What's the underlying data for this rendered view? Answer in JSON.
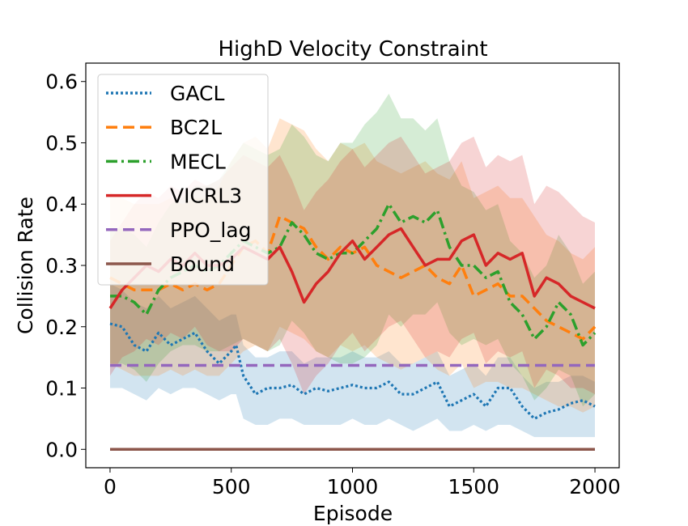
{
  "chart_data": {
    "type": "line",
    "title": "HighD Velocity Constraint",
    "xlabel": "Episode",
    "ylabel": "Collision Rate",
    "xlim": [
      -100,
      2100
    ],
    "ylim": [
      -0.03,
      0.63
    ],
    "xticks": [
      0,
      500,
      1000,
      1500,
      2000
    ],
    "yticks": [
      0.0,
      0.1,
      0.2,
      0.3,
      0.4,
      0.5,
      0.6
    ],
    "legend_position": "upper-left",
    "series": [
      {
        "name": "GACL",
        "color": "#1f77b4",
        "style": "dotted",
        "x": [
          0,
          50,
          100,
          150,
          200,
          250,
          300,
          350,
          400,
          450,
          500,
          520,
          550,
          600,
          650,
          700,
          750,
          800,
          850,
          900,
          950,
          1000,
          1050,
          1100,
          1150,
          1200,
          1250,
          1300,
          1350,
          1400,
          1450,
          1500,
          1550,
          1600,
          1650,
          1700,
          1750,
          1800,
          1850,
          1900,
          1950,
          2000
        ],
        "values": [
          0.205,
          0.2,
          0.17,
          0.16,
          0.19,
          0.17,
          0.18,
          0.19,
          0.16,
          0.14,
          0.16,
          0.17,
          0.12,
          0.09,
          0.1,
          0.1,
          0.105,
          0.09,
          0.1,
          0.095,
          0.1,
          0.105,
          0.1,
          0.1,
          0.11,
          0.09,
          0.09,
          0.1,
          0.11,
          0.07,
          0.08,
          0.09,
          0.07,
          0.1,
          0.1,
          0.07,
          0.05,
          0.06,
          0.065,
          0.075,
          0.08,
          0.07
        ],
        "band_upper": [
          0.27,
          0.26,
          0.24,
          0.23,
          0.25,
          0.23,
          0.24,
          0.25,
          0.23,
          0.21,
          0.22,
          0.22,
          0.17,
          0.15,
          0.15,
          0.16,
          0.16,
          0.14,
          0.15,
          0.15,
          0.15,
          0.16,
          0.15,
          0.15,
          0.16,
          0.14,
          0.14,
          0.15,
          0.16,
          0.12,
          0.13,
          0.14,
          0.12,
          0.15,
          0.15,
          0.12,
          0.1,
          0.11,
          0.11,
          0.12,
          0.12,
          0.11
        ],
        "band_lower": [
          0.1,
          0.1,
          0.09,
          0.08,
          0.1,
          0.09,
          0.1,
          0.1,
          0.09,
          0.08,
          0.09,
          0.09,
          0.05,
          0.04,
          0.04,
          0.05,
          0.05,
          0.04,
          0.04,
          0.04,
          0.04,
          0.05,
          0.04,
          0.04,
          0.05,
          0.04,
          0.03,
          0.04,
          0.05,
          0.03,
          0.03,
          0.04,
          0.03,
          0.04,
          0.04,
          0.03,
          0.02,
          0.02,
          0.02,
          0.02,
          0.02,
          0.02
        ]
      },
      {
        "name": "BC2L",
        "color": "#ff7f0e",
        "style": "dashed",
        "x": [
          0,
          50,
          100,
          150,
          200,
          250,
          300,
          350,
          400,
          450,
          500,
          550,
          600,
          650,
          700,
          750,
          800,
          850,
          900,
          950,
          1000,
          1050,
          1100,
          1150,
          1200,
          1250,
          1300,
          1350,
          1400,
          1450,
          1500,
          1550,
          1600,
          1650,
          1700,
          1750,
          1800,
          1850,
          1900,
          1950,
          2000
        ],
        "values": [
          0.28,
          0.27,
          0.26,
          0.26,
          0.26,
          0.27,
          0.26,
          0.27,
          0.26,
          0.27,
          0.3,
          0.33,
          0.34,
          0.32,
          0.38,
          0.37,
          0.36,
          0.33,
          0.31,
          0.33,
          0.32,
          0.33,
          0.3,
          0.29,
          0.28,
          0.29,
          0.3,
          0.28,
          0.27,
          0.3,
          0.25,
          0.26,
          0.27,
          0.25,
          0.25,
          0.23,
          0.21,
          0.2,
          0.19,
          0.18,
          0.2
        ],
        "band_upper": [
          0.42,
          0.41,
          0.4,
          0.4,
          0.4,
          0.41,
          0.4,
          0.41,
          0.41,
          0.43,
          0.47,
          0.5,
          0.51,
          0.49,
          0.54,
          0.53,
          0.52,
          0.49,
          0.47,
          0.5,
          0.49,
          0.5,
          0.47,
          0.46,
          0.45,
          0.46,
          0.47,
          0.45,
          0.44,
          0.47,
          0.41,
          0.42,
          0.43,
          0.41,
          0.41,
          0.38,
          0.35,
          0.34,
          0.32,
          0.31,
          0.33
        ],
        "band_lower": [
          0.14,
          0.13,
          0.12,
          0.12,
          0.12,
          0.13,
          0.12,
          0.13,
          0.12,
          0.12,
          0.14,
          0.16,
          0.17,
          0.16,
          0.2,
          0.19,
          0.18,
          0.16,
          0.15,
          0.17,
          0.16,
          0.17,
          0.15,
          0.14,
          0.13,
          0.14,
          0.15,
          0.13,
          0.12,
          0.14,
          0.1,
          0.11,
          0.11,
          0.1,
          0.1,
          0.09,
          0.08,
          0.07,
          0.07,
          0.06,
          0.07
        ]
      },
      {
        "name": "MECL",
        "color": "#2ca02c",
        "style": "dashdot",
        "x": [
          0,
          50,
          100,
          150,
          200,
          250,
          300,
          350,
          400,
          450,
          500,
          550,
          600,
          650,
          700,
          750,
          800,
          850,
          900,
          950,
          1000,
          1050,
          1100,
          1150,
          1200,
          1250,
          1300,
          1350,
          1400,
          1450,
          1500,
          1550,
          1600,
          1650,
          1700,
          1750,
          1800,
          1850,
          1900,
          1950,
          2000
        ],
        "values": [
          0.25,
          0.25,
          0.24,
          0.22,
          0.26,
          0.28,
          0.29,
          0.3,
          0.29,
          0.3,
          0.32,
          0.34,
          0.33,
          0.32,
          0.33,
          0.37,
          0.35,
          0.32,
          0.31,
          0.32,
          0.32,
          0.34,
          0.36,
          0.4,
          0.37,
          0.38,
          0.37,
          0.39,
          0.33,
          0.3,
          0.3,
          0.28,
          0.29,
          0.24,
          0.22,
          0.18,
          0.2,
          0.24,
          0.22,
          0.17,
          0.19
        ],
        "band_upper": [
          0.36,
          0.36,
          0.35,
          0.33,
          0.37,
          0.4,
          0.41,
          0.43,
          0.43,
          0.44,
          0.47,
          0.5,
          0.49,
          0.48,
          0.49,
          0.53,
          0.51,
          0.48,
          0.47,
          0.5,
          0.5,
          0.53,
          0.55,
          0.58,
          0.54,
          0.54,
          0.52,
          0.54,
          0.47,
          0.43,
          0.42,
          0.39,
          0.4,
          0.34,
          0.32,
          0.28,
          0.3,
          0.35,
          0.32,
          0.27,
          0.29
        ],
        "band_lower": [
          0.14,
          0.14,
          0.13,
          0.11,
          0.14,
          0.16,
          0.17,
          0.17,
          0.16,
          0.16,
          0.17,
          0.18,
          0.17,
          0.16,
          0.17,
          0.21,
          0.19,
          0.16,
          0.15,
          0.14,
          0.14,
          0.15,
          0.17,
          0.22,
          0.2,
          0.22,
          0.22,
          0.24,
          0.19,
          0.17,
          0.18,
          0.17,
          0.18,
          0.14,
          0.12,
          0.08,
          0.1,
          0.13,
          0.12,
          0.07,
          0.09
        ]
      },
      {
        "name": "VICRL3",
        "color": "#d62728",
        "style": "solid",
        "x": [
          0,
          50,
          100,
          150,
          200,
          250,
          300,
          350,
          400,
          450,
          500,
          550,
          600,
          650,
          700,
          750,
          800,
          850,
          900,
          950,
          1000,
          1050,
          1100,
          1150,
          1200,
          1250,
          1300,
          1350,
          1400,
          1450,
          1500,
          1550,
          1600,
          1650,
          1700,
          1750,
          1800,
          1850,
          1900,
          1950,
          2000
        ],
        "values": [
          0.23,
          0.26,
          0.28,
          0.3,
          0.29,
          0.31,
          0.3,
          0.32,
          0.3,
          0.3,
          0.31,
          0.33,
          0.32,
          0.31,
          0.33,
          0.29,
          0.24,
          0.27,
          0.29,
          0.32,
          0.34,
          0.31,
          0.33,
          0.35,
          0.36,
          0.33,
          0.3,
          0.31,
          0.31,
          0.34,
          0.35,
          0.3,
          0.32,
          0.31,
          0.32,
          0.25,
          0.28,
          0.27,
          0.25,
          0.24,
          0.23
        ],
        "band_upper": [
          0.34,
          0.37,
          0.4,
          0.42,
          0.41,
          0.43,
          0.42,
          0.44,
          0.43,
          0.44,
          0.46,
          0.48,
          0.47,
          0.46,
          0.48,
          0.44,
          0.39,
          0.42,
          0.44,
          0.47,
          0.49,
          0.46,
          0.48,
          0.5,
          0.51,
          0.48,
          0.45,
          0.46,
          0.47,
          0.5,
          0.51,
          0.46,
          0.48,
          0.47,
          0.48,
          0.4,
          0.43,
          0.42,
          0.4,
          0.38,
          0.37
        ],
        "band_lower": [
          0.12,
          0.15,
          0.16,
          0.18,
          0.17,
          0.19,
          0.18,
          0.2,
          0.17,
          0.16,
          0.16,
          0.18,
          0.17,
          0.16,
          0.18,
          0.14,
          0.09,
          0.12,
          0.14,
          0.17,
          0.19,
          0.16,
          0.18,
          0.2,
          0.21,
          0.18,
          0.15,
          0.16,
          0.15,
          0.18,
          0.19,
          0.14,
          0.16,
          0.15,
          0.16,
          0.1,
          0.13,
          0.12,
          0.1,
          0.1,
          0.09
        ]
      },
      {
        "name": "PPO_lag",
        "color": "#9467bd",
        "style": "dashed",
        "x": [
          0,
          2000
        ],
        "values": [
          0.137,
          0.137
        ]
      },
      {
        "name": "Bound",
        "color": "#8c564b",
        "style": "solid",
        "x": [
          0,
          2000
        ],
        "values": [
          0.0,
          0.0
        ]
      }
    ]
  }
}
